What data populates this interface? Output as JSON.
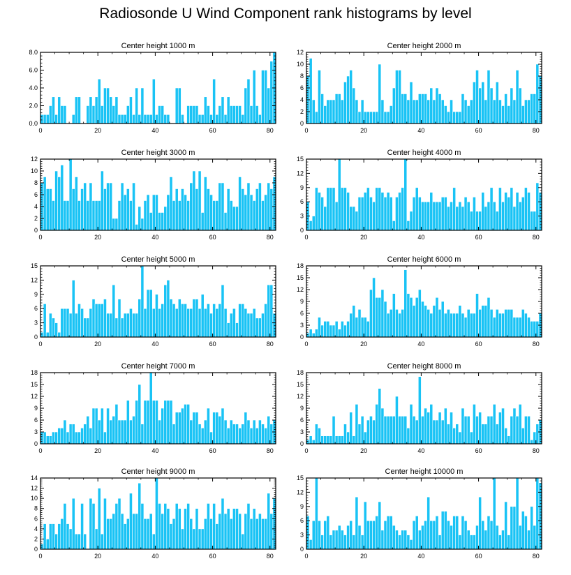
{
  "title": "Radiosonde U Wind Component rank histograms by level",
  "colors": {
    "bar": "#19c3f5",
    "bar_edge": "#ffffff",
    "axis": "#000000"
  },
  "chart_data": [
    {
      "type": "bar",
      "title": "Center height 1000 m",
      "xlim": [
        0,
        82
      ],
      "ylim": [
        0,
        8
      ],
      "xticks": [
        0,
        20,
        40,
        60,
        80
      ],
      "yticks": [
        "0.0",
        "2.0",
        "4.0",
        "6.0",
        "8.0"
      ],
      "values": [
        1,
        1,
        1,
        2,
        3,
        1,
        3,
        2,
        2,
        0,
        0,
        1,
        3,
        3,
        0,
        0,
        2,
        3,
        2,
        3,
        5,
        2,
        4,
        4,
        3,
        2,
        3,
        1,
        1,
        1,
        2,
        3,
        1,
        4,
        1,
        4,
        1,
        1,
        1,
        5,
        1,
        2,
        2,
        1,
        1,
        0,
        0,
        4,
        4,
        1,
        0,
        2,
        2,
        2,
        2,
        1,
        1,
        3,
        2,
        1,
        5,
        1,
        2,
        3,
        1,
        3,
        2,
        2,
        2,
        2,
        1,
        4,
        5,
        2,
        6,
        2,
        1,
        6,
        6,
        4,
        7,
        8
      ]
    },
    {
      "type": "bar",
      "title": "Center height 2000 m",
      "xlim": [
        0,
        82
      ],
      "ylim": [
        0,
        12
      ],
      "xticks": [
        0,
        20,
        40,
        60,
        80
      ],
      "yticks": [
        "0",
        "2",
        "4",
        "6",
        "8",
        "10",
        "12"
      ],
      "values": [
        8,
        11,
        4,
        2,
        9,
        5,
        3,
        4,
        4,
        4,
        5,
        5,
        4,
        7,
        8,
        9,
        6,
        4,
        2,
        4,
        2,
        2,
        2,
        2,
        2,
        10,
        4,
        2,
        2,
        3,
        6,
        9,
        9,
        5,
        5,
        4,
        7,
        4,
        4,
        5,
        5,
        5,
        4,
        6,
        4,
        6,
        5,
        4,
        3,
        2,
        4,
        2,
        2,
        2,
        5,
        4,
        3,
        4,
        7,
        9,
        6,
        7,
        4,
        9,
        6,
        4,
        7,
        4,
        3,
        5,
        3,
        6,
        4,
        9,
        6,
        3,
        4,
        4,
        5,
        5,
        10,
        8
      ]
    },
    {
      "type": "bar",
      "title": "Center height 3000 m",
      "xlim": [
        0,
        82
      ],
      "ylim": [
        0,
        12
      ],
      "xticks": [
        0,
        20,
        40,
        60,
        80
      ],
      "yticks": [
        "0",
        "2",
        "4",
        "6",
        "8",
        "10",
        "12"
      ],
      "values": [
        8,
        9,
        7,
        7,
        5,
        10,
        9,
        11,
        5,
        5,
        12,
        7,
        9,
        5,
        7,
        8,
        5,
        8,
        5,
        5,
        5,
        10,
        7,
        8,
        8,
        2,
        2,
        5,
        8,
        6,
        7,
        5,
        8,
        1,
        4,
        2,
        5,
        6,
        3,
        6,
        6,
        3,
        3,
        4,
        6,
        9,
        5,
        7,
        5,
        7,
        6,
        5,
        8,
        10,
        7,
        10,
        3,
        9,
        7,
        6,
        5,
        5,
        8,
        8,
        3,
        7,
        5,
        4,
        4,
        9,
        7,
        6,
        8,
        6,
        5,
        7,
        8,
        5,
        6,
        8,
        7,
        9
      ]
    },
    {
      "type": "bar",
      "title": "Center height 4000 m",
      "xlim": [
        0,
        82
      ],
      "ylim": [
        0,
        15
      ],
      "xticks": [
        0,
        20,
        40,
        60,
        80
      ],
      "yticks": [
        "0",
        "3",
        "6",
        "9",
        "12",
        "15"
      ],
      "values": [
        6,
        2,
        3,
        9,
        8,
        7,
        5,
        9,
        9,
        9,
        6,
        15,
        9,
        9,
        8,
        5,
        5,
        4,
        7,
        7,
        8,
        9,
        7,
        6,
        9,
        9,
        8,
        7,
        8,
        7,
        2,
        7,
        8,
        9,
        15,
        2,
        4,
        7,
        9,
        7,
        6,
        6,
        6,
        8,
        6,
        6,
        6,
        7,
        7,
        5,
        6,
        9,
        5,
        6,
        5,
        7,
        6,
        4,
        7,
        4,
        4,
        8,
        5,
        6,
        9,
        6,
        4,
        9,
        6,
        8,
        7,
        9,
        5,
        8,
        6,
        7,
        9,
        8,
        4,
        4,
        10,
        8
      ]
    },
    {
      "type": "bar",
      "title": "Center height 5000 m",
      "xlim": [
        0,
        82
      ],
      "ylim": [
        0,
        15
      ],
      "xticks": [
        0,
        20,
        40,
        60,
        80
      ],
      "yticks": [
        "0",
        "3",
        "6",
        "9",
        "12",
        "15"
      ],
      "values": [
        1,
        7,
        1,
        5,
        4,
        3,
        1,
        6,
        6,
        6,
        5,
        12,
        5,
        7,
        6,
        4,
        4,
        6,
        8,
        7,
        7,
        7,
        8,
        5,
        5,
        11,
        4,
        8,
        4,
        5,
        5,
        6,
        5,
        5,
        8,
        15,
        6,
        10,
        10,
        6,
        9,
        6,
        7,
        11,
        12,
        8,
        7,
        6,
        8,
        7,
        7,
        6,
        6,
        8,
        8,
        6,
        9,
        6,
        7,
        5,
        7,
        6,
        7,
        11,
        6,
        3,
        5,
        6,
        3,
        7,
        7,
        6,
        5,
        5,
        6,
        4,
        4,
        5,
        7,
        11,
        11,
        5
      ]
    },
    {
      "type": "bar",
      "title": "Center height 6000 m",
      "xlim": [
        0,
        82
      ],
      "ylim": [
        0,
        18
      ],
      "xticks": [
        0,
        20,
        40,
        60,
        80
      ],
      "yticks": [
        "0",
        "3",
        "6",
        "9",
        "12",
        "15",
        "18"
      ],
      "values": [
        1,
        2,
        1,
        2,
        5,
        3,
        4,
        4,
        3,
        3,
        4,
        2,
        4,
        3,
        4,
        6,
        8,
        5,
        7,
        5,
        5,
        4,
        12,
        15,
        10,
        10,
        12,
        9,
        6,
        7,
        11,
        7,
        6,
        7,
        17,
        11,
        10,
        8,
        10,
        12,
        9,
        8,
        7,
        6,
        8,
        10,
        7,
        9,
        6,
        7,
        6,
        6,
        6,
        8,
        6,
        5,
        7,
        6,
        6,
        11,
        7,
        8,
        8,
        10,
        7,
        5,
        7,
        6,
        6,
        7,
        7,
        7,
        5,
        5,
        5,
        7,
        6,
        5,
        4,
        4,
        4,
        6
      ]
    },
    {
      "type": "bar",
      "title": "Center height 7000 m",
      "xlim": [
        0,
        82
      ],
      "ylim": [
        0,
        18
      ],
      "xticks": [
        0,
        20,
        40,
        60,
        80
      ],
      "yticks": [
        "0",
        "3",
        "6",
        "9",
        "12",
        "15",
        "18"
      ],
      "values": [
        3,
        3,
        2,
        2,
        3,
        3,
        4,
        4,
        6,
        3,
        5,
        5,
        3,
        3,
        4,
        5,
        7,
        4,
        9,
        9,
        6,
        9,
        3,
        9,
        6,
        7,
        10,
        6,
        6,
        6,
        11,
        6,
        7,
        11,
        15,
        5,
        11,
        11,
        18,
        11,
        11,
        6,
        9,
        11,
        11,
        11,
        5,
        8,
        8,
        9,
        10,
        10,
        6,
        8,
        8,
        5,
        4,
        6,
        9,
        3,
        8,
        8,
        7,
        9,
        6,
        4,
        6,
        5,
        5,
        4,
        5,
        8,
        6,
        4,
        6,
        4,
        6,
        5,
        4,
        7,
        5,
        6
      ]
    },
    {
      "type": "bar",
      "title": "Center height 8000 m",
      "xlim": [
        0,
        82
      ],
      "ylim": [
        0,
        18
      ],
      "xticks": [
        0,
        20,
        40,
        60,
        80
      ],
      "yticks": [
        "0",
        "3",
        "6",
        "9",
        "12",
        "15",
        "18"
      ],
      "values": [
        1,
        2,
        1,
        5,
        4,
        2,
        2,
        2,
        2,
        7,
        2,
        2,
        2,
        5,
        3,
        8,
        2,
        10,
        5,
        7,
        3,
        6,
        7,
        6,
        10,
        14,
        9,
        7,
        7,
        7,
        7,
        12,
        7,
        7,
        7,
        4,
        10,
        7,
        6,
        17,
        7,
        9,
        8,
        10,
        6,
        6,
        8,
        6,
        9,
        5,
        8,
        4,
        5,
        3,
        9,
        7,
        7,
        3,
        10,
        7,
        8,
        5,
        5,
        7,
        7,
        10,
        5,
        8,
        9,
        4,
        2,
        7,
        9,
        7,
        10,
        4,
        7,
        7,
        1,
        3,
        5,
        6
      ]
    },
    {
      "type": "bar",
      "title": "Center height 9000 m",
      "xlim": [
        0,
        82
      ],
      "ylim": [
        0,
        14
      ],
      "xticks": [
        0,
        20,
        40,
        60,
        80
      ],
      "yticks": [
        "0",
        "2",
        "4",
        "6",
        "8",
        "10",
        "12",
        "14"
      ],
      "values": [
        1,
        5,
        2,
        5,
        5,
        3,
        5,
        6,
        9,
        5,
        4,
        10,
        3,
        3,
        9,
        3,
        0,
        10,
        9,
        4,
        12,
        3,
        10,
        6,
        6,
        7,
        9,
        10,
        7,
        5,
        6,
        11,
        7,
        7,
        13,
        9,
        6,
        6,
        7,
        3,
        14,
        9,
        7,
        9,
        8,
        5,
        6,
        9,
        8,
        4,
        8,
        9,
        6,
        4,
        8,
        4,
        4,
        6,
        9,
        6,
        9,
        5,
        7,
        10,
        7,
        8,
        6,
        8,
        8,
        7,
        3,
        7,
        9,
        6,
        8,
        6,
        7,
        6,
        6,
        11,
        7,
        10
      ]
    },
    {
      "type": "bar",
      "title": "Center height 10000 m",
      "xlim": [
        0,
        82
      ],
      "ylim": [
        0,
        15
      ],
      "xticks": [
        0,
        20,
        40,
        60,
        80
      ],
      "yticks": [
        "0",
        "3",
        "6",
        "9",
        "12",
        "15"
      ],
      "values": [
        7,
        2,
        6,
        15,
        6,
        3,
        6,
        7,
        3,
        4,
        4,
        5,
        4,
        3,
        5,
        6,
        3,
        11,
        5,
        3,
        10,
        6,
        6,
        6,
        7,
        10,
        4,
        6,
        7,
        7,
        5,
        4,
        3,
        4,
        4,
        3,
        2,
        6,
        7,
        4,
        5,
        6,
        11,
        6,
        6,
        7,
        3,
        8,
        8,
        6,
        5,
        7,
        7,
        3,
        7,
        6,
        4,
        3,
        3,
        5,
        11,
        6,
        4,
        7,
        6,
        15,
        5,
        3,
        4,
        10,
        3,
        9,
        9,
        15,
        5,
        8,
        7,
        4,
        9,
        5,
        15,
        14
      ]
    }
  ]
}
